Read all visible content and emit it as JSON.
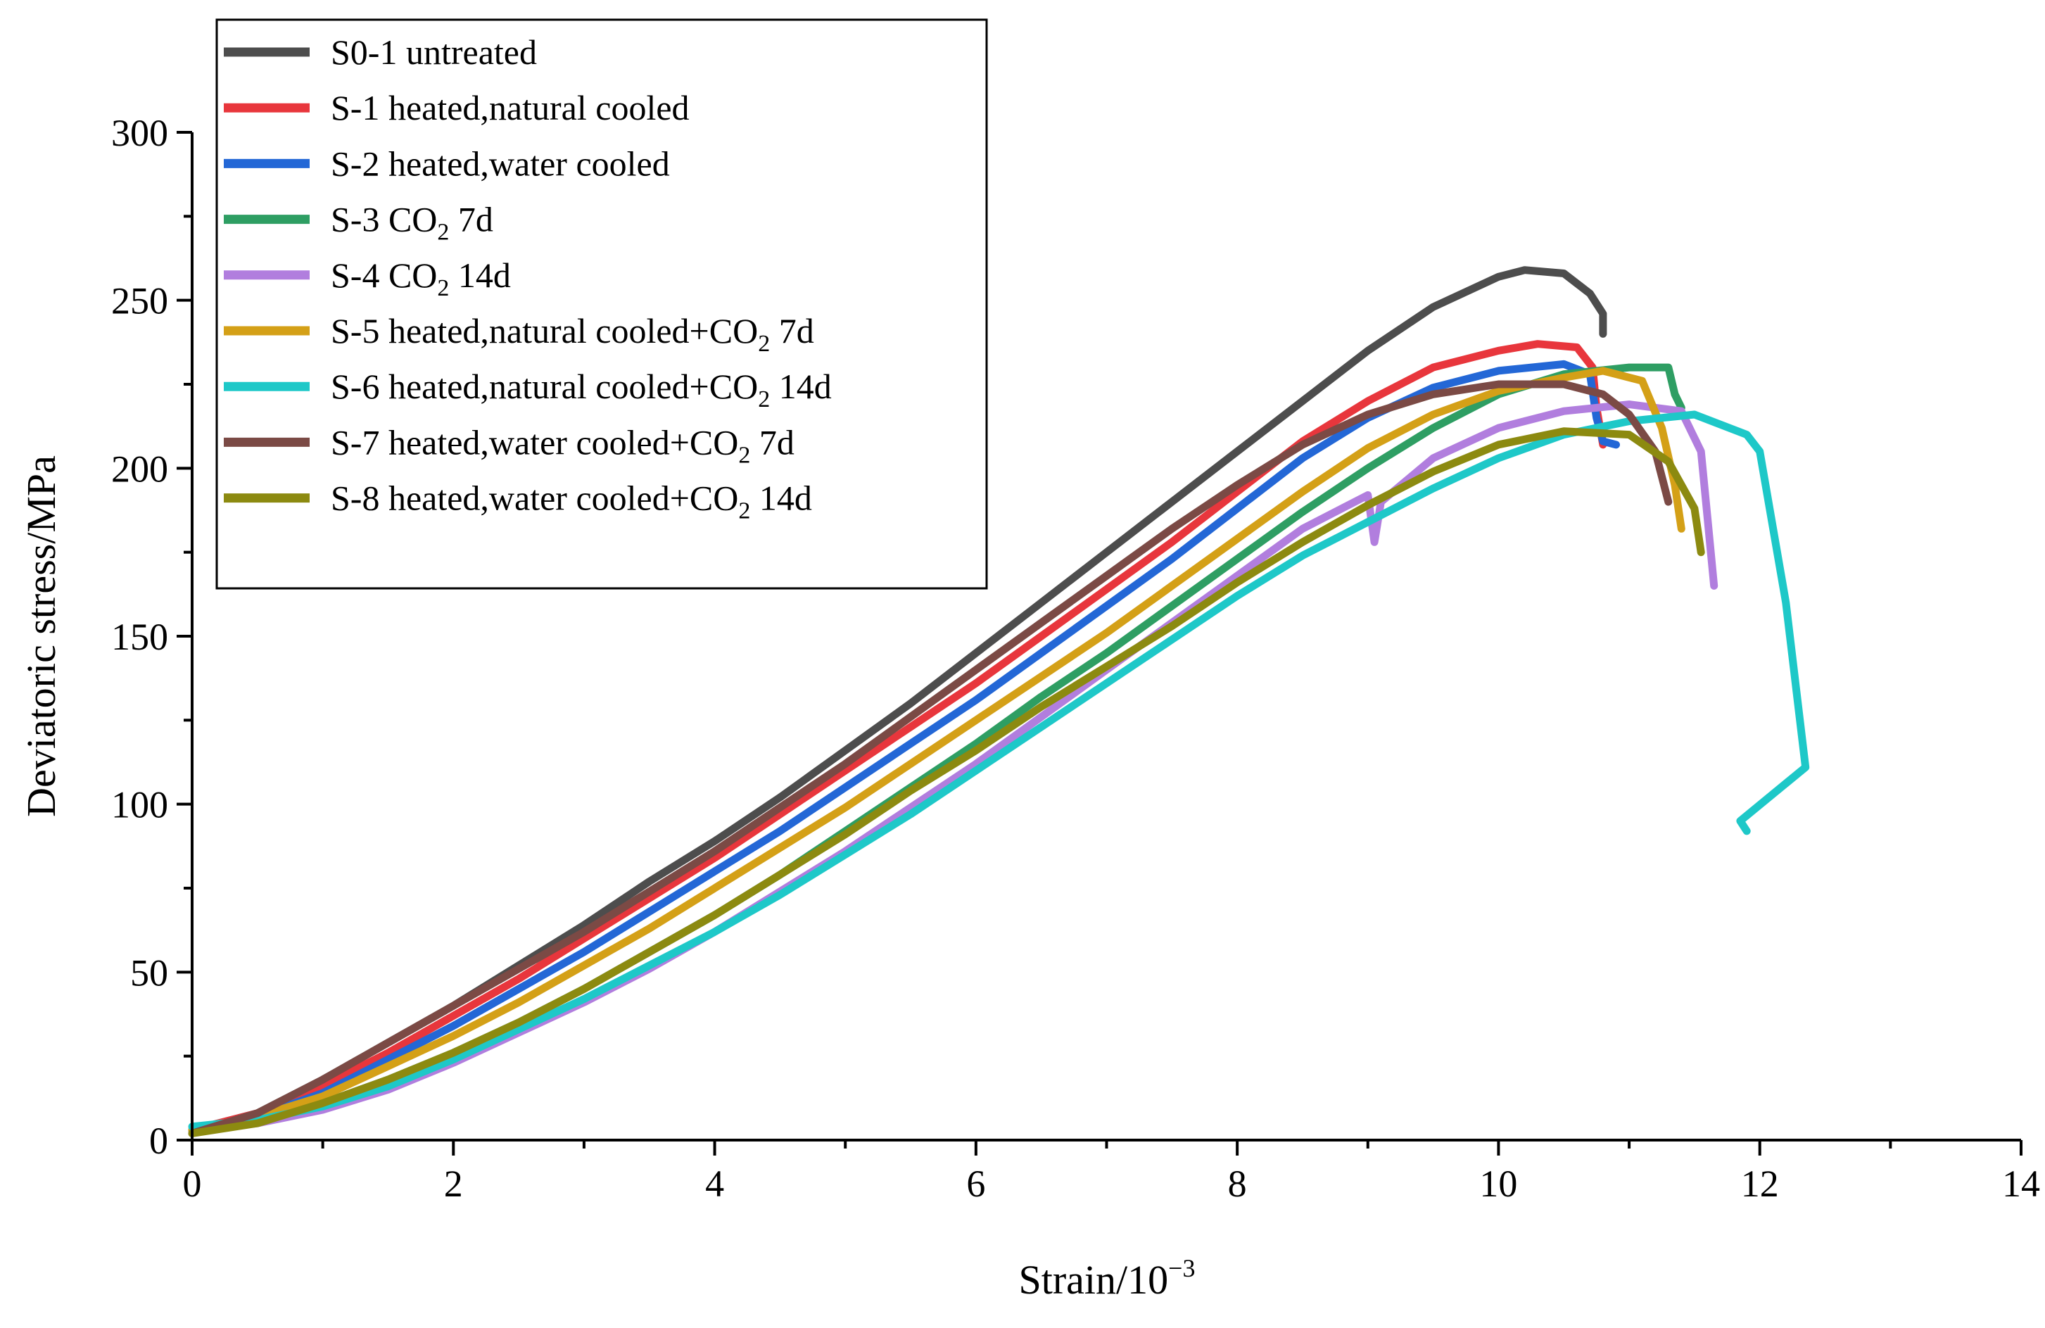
{
  "chart_data": {
    "type": "line",
    "title": "",
    "xlabel": "Strain/10",
    "xlabel_exp": "−3",
    "ylabel": "Deviatoric stress/MPa",
    "xlim": [
      0,
      14
    ],
    "ylim": [
      0,
      300
    ],
    "xticks": [
      0,
      2,
      4,
      6,
      8,
      10,
      12,
      14
    ],
    "yticks": [
      0,
      50,
      100,
      150,
      200,
      250,
      300
    ],
    "legend_position": "top-left",
    "series": [
      {
        "name": "S0-1  untreated",
        "legend": {
          "pre": "S0-1  untreated"
        },
        "color": "#4d4d4d",
        "points": [
          [
            0,
            3
          ],
          [
            0.5,
            8
          ],
          [
            1,
            18
          ],
          [
            1.5,
            29
          ],
          [
            2,
            40
          ],
          [
            2.5,
            52
          ],
          [
            3,
            64
          ],
          [
            3.5,
            77
          ],
          [
            4,
            89
          ],
          [
            4.5,
            102
          ],
          [
            5,
            116
          ],
          [
            5.5,
            130
          ],
          [
            6,
            145
          ],
          [
            6.5,
            160
          ],
          [
            7,
            175
          ],
          [
            7.5,
            190
          ],
          [
            8,
            205
          ],
          [
            8.5,
            220
          ],
          [
            9,
            235
          ],
          [
            9.5,
            248
          ],
          [
            10,
            257
          ],
          [
            10.2,
            259
          ],
          [
            10.5,
            258
          ],
          [
            10.7,
            252
          ],
          [
            10.8,
            246
          ],
          [
            10.8,
            240
          ]
        ]
      },
      {
        "name": "S-1  heated,natural cooled",
        "legend": {
          "pre": "S-1  heated,natural cooled"
        },
        "color": "#e8363c",
        "points": [
          [
            0,
            3
          ],
          [
            0.5,
            8
          ],
          [
            1,
            16
          ],
          [
            1.5,
            26
          ],
          [
            2,
            37
          ],
          [
            2.5,
            48
          ],
          [
            3,
            60
          ],
          [
            3.5,
            72
          ],
          [
            4,
            84
          ],
          [
            4.5,
            97
          ],
          [
            5,
            110
          ],
          [
            5.5,
            123
          ],
          [
            6,
            136
          ],
          [
            6.5,
            150
          ],
          [
            7,
            164
          ],
          [
            7.5,
            178
          ],
          [
            8,
            193
          ],
          [
            8.5,
            208
          ],
          [
            9,
            220
          ],
          [
            9.5,
            230
          ],
          [
            10,
            235
          ],
          [
            10.3,
            237
          ],
          [
            10.6,
            236
          ],
          [
            10.72,
            230
          ],
          [
            10.75,
            218
          ],
          [
            10.8,
            207
          ]
        ]
      },
      {
        "name": "S-2  heated,water cooled",
        "legend": {
          "pre": "S-2  heated,water cooled"
        },
        "color": "#2367d6",
        "points": [
          [
            0,
            3
          ],
          [
            0.5,
            7
          ],
          [
            1,
            14
          ],
          [
            1.5,
            24
          ],
          [
            2,
            34
          ],
          [
            2.5,
            45
          ],
          [
            3,
            56
          ],
          [
            3.5,
            68
          ],
          [
            4,
            80
          ],
          [
            4.5,
            92
          ],
          [
            5,
            105
          ],
          [
            5.5,
            118
          ],
          [
            6,
            131
          ],
          [
            6.5,
            145
          ],
          [
            7,
            159
          ],
          [
            7.5,
            173
          ],
          [
            8,
            188
          ],
          [
            8.5,
            203
          ],
          [
            9,
            215
          ],
          [
            9.5,
            224
          ],
          [
            10,
            229
          ],
          [
            10.5,
            231
          ],
          [
            10.7,
            228
          ],
          [
            10.75,
            215
          ],
          [
            10.8,
            208
          ],
          [
            10.9,
            207
          ]
        ]
      },
      {
        "name": "S-3  CO2 7d",
        "legend": {
          "pre": "S-3  CO",
          "sub": "2",
          "post": " 7d"
        },
        "color": "#2e9e63",
        "points": [
          [
            0,
            3
          ],
          [
            0.5,
            6
          ],
          [
            1,
            11
          ],
          [
            1.5,
            18
          ],
          [
            2,
            26
          ],
          [
            2.5,
            35
          ],
          [
            3,
            45
          ],
          [
            3.5,
            56
          ],
          [
            4,
            67
          ],
          [
            4.5,
            79
          ],
          [
            5,
            92
          ],
          [
            5.5,
            105
          ],
          [
            6,
            118
          ],
          [
            6.5,
            132
          ],
          [
            7,
            145
          ],
          [
            7.5,
            159
          ],
          [
            8,
            173
          ],
          [
            8.5,
            187
          ],
          [
            9,
            200
          ],
          [
            9.5,
            212
          ],
          [
            10,
            222
          ],
          [
            10.5,
            228
          ],
          [
            11,
            230
          ],
          [
            11.3,
            230
          ],
          [
            11.35,
            222
          ],
          [
            11.4,
            218
          ]
        ]
      },
      {
        "name": "S-4  CO2 14d",
        "legend": {
          "pre": "S-4  CO",
          "sub": "2",
          "post": " 14d"
        },
        "color": "#b17ede",
        "points": [
          [
            0,
            3
          ],
          [
            0.5,
            5
          ],
          [
            1,
            9
          ],
          [
            1.5,
            15
          ],
          [
            2,
            23
          ],
          [
            2.5,
            32
          ],
          [
            3,
            41
          ],
          [
            3.5,
            51
          ],
          [
            4,
            62
          ],
          [
            4.5,
            74
          ],
          [
            5,
            86
          ],
          [
            5.5,
            99
          ],
          [
            6,
            112
          ],
          [
            6.5,
            126
          ],
          [
            7,
            140
          ],
          [
            7.5,
            154
          ],
          [
            8,
            168
          ],
          [
            8.5,
            182
          ],
          [
            9,
            192
          ],
          [
            9.05,
            178
          ],
          [
            9.1,
            190
          ],
          [
            9.5,
            203
          ],
          [
            10,
            212
          ],
          [
            10.5,
            217
          ],
          [
            11,
            219
          ],
          [
            11.4,
            217
          ],
          [
            11.55,
            205
          ],
          [
            11.6,
            185
          ],
          [
            11.65,
            165
          ]
        ]
      },
      {
        "name": "S-5  heated,natural cooled+CO2 7d",
        "legend": {
          "pre": "S-5  heated,natural cooled+CO",
          "sub": "2",
          "post": " 7d"
        },
        "color": "#d4a017",
        "points": [
          [
            0,
            3
          ],
          [
            0.5,
            7
          ],
          [
            1,
            13
          ],
          [
            1.5,
            22
          ],
          [
            2,
            31
          ],
          [
            2.5,
            41
          ],
          [
            3,
            52
          ],
          [
            3.5,
            63
          ],
          [
            4,
            75
          ],
          [
            4.5,
            87
          ],
          [
            5,
            99
          ],
          [
            5.5,
            112
          ],
          [
            6,
            125
          ],
          [
            6.5,
            138
          ],
          [
            7,
            151
          ],
          [
            7.5,
            165
          ],
          [
            8,
            179
          ],
          [
            8.5,
            193
          ],
          [
            9,
            206
          ],
          [
            9.5,
            216
          ],
          [
            10,
            223
          ],
          [
            10.5,
            227
          ],
          [
            10.8,
            229
          ],
          [
            11.1,
            226
          ],
          [
            11.25,
            212
          ],
          [
            11.35,
            195
          ],
          [
            11.4,
            182
          ]
        ]
      },
      {
        "name": "S-6  heated,natural cooled+CO2 14d",
        "legend": {
          "pre": "S-6  heated,natural cooled+CO",
          "sub": "2",
          "post": " 14d"
        },
        "color": "#1ec8c8",
        "points": [
          [
            0,
            4
          ],
          [
            0.5,
            6
          ],
          [
            1,
            10
          ],
          [
            1.5,
            16
          ],
          [
            2,
            24
          ],
          [
            2.5,
            33
          ],
          [
            3,
            42
          ],
          [
            3.5,
            52
          ],
          [
            4,
            62
          ],
          [
            4.5,
            73
          ],
          [
            5,
            85
          ],
          [
            5.5,
            97
          ],
          [
            6,
            110
          ],
          [
            6.5,
            123
          ],
          [
            7,
            136
          ],
          [
            7.5,
            149
          ],
          [
            8,
            162
          ],
          [
            8.5,
            174
          ],
          [
            9,
            184
          ],
          [
            9.5,
            194
          ],
          [
            10,
            203
          ],
          [
            10.5,
            210
          ],
          [
            11,
            214
          ],
          [
            11.5,
            216
          ],
          [
            11.9,
            210
          ],
          [
            12,
            205
          ],
          [
            12.2,
            160
          ],
          [
            12.35,
            111
          ],
          [
            11.85,
            95
          ],
          [
            11.9,
            92
          ]
        ]
      },
      {
        "name": "S-7  heated,water cooled+CO2 7d",
        "legend": {
          "pre": "S-7  heated,water cooled+CO",
          "sub": "2",
          "post": " 7d"
        },
        "color": "#7b4a45",
        "points": [
          [
            0,
            2
          ],
          [
            0.5,
            8
          ],
          [
            1,
            18
          ],
          [
            1.5,
            29
          ],
          [
            2,
            40
          ],
          [
            2.5,
            51
          ],
          [
            3,
            62
          ],
          [
            3.5,
            74
          ],
          [
            4,
            86
          ],
          [
            4.5,
            99
          ],
          [
            5,
            112
          ],
          [
            5.5,
            126
          ],
          [
            6,
            140
          ],
          [
            6.5,
            154
          ],
          [
            7,
            168
          ],
          [
            7.5,
            182
          ],
          [
            8,
            195
          ],
          [
            8.5,
            207
          ],
          [
            9,
            216
          ],
          [
            9.5,
            222
          ],
          [
            10,
            225
          ],
          [
            10.5,
            225
          ],
          [
            10.8,
            222
          ],
          [
            11,
            216
          ],
          [
            11.2,
            205
          ],
          [
            11.3,
            190
          ]
        ]
      },
      {
        "name": "S-8  heated,water cooled+CO2 14d",
        "legend": {
          "pre": "S-8  heated,water cooled+CO",
          "sub": "2",
          "post": " 14d"
        },
        "color": "#8c8a10",
        "points": [
          [
            0,
            2
          ],
          [
            0.5,
            5
          ],
          [
            1,
            11
          ],
          [
            1.5,
            18
          ],
          [
            2,
            26
          ],
          [
            2.5,
            35
          ],
          [
            3,
            45
          ],
          [
            3.5,
            56
          ],
          [
            4,
            67
          ],
          [
            4.5,
            79
          ],
          [
            5,
            91
          ],
          [
            5.5,
            104
          ],
          [
            6,
            116
          ],
          [
            6.5,
            129
          ],
          [
            7,
            141
          ],
          [
            7.5,
            153
          ],
          [
            8,
            166
          ],
          [
            8.5,
            178
          ],
          [
            9,
            189
          ],
          [
            9.5,
            199
          ],
          [
            10,
            207
          ],
          [
            10.5,
            211
          ],
          [
            11,
            210
          ],
          [
            11.3,
            202
          ],
          [
            11.5,
            188
          ],
          [
            11.55,
            175
          ]
        ]
      }
    ]
  }
}
